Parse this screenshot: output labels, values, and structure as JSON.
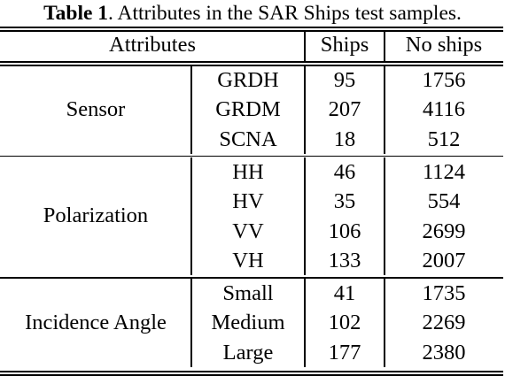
{
  "caption": {
    "label": "Table 1",
    "text": ". Attributes in the SAR Ships test samples."
  },
  "header": {
    "attributes": "Attributes",
    "ships": "Ships",
    "no_ships": "No ships"
  },
  "groups": [
    {
      "name": "Sensor",
      "rows": [
        {
          "attribute": "GRDH",
          "ships": "95",
          "no_ships": "1756"
        },
        {
          "attribute": "GRDM",
          "ships": "207",
          "no_ships": "4116"
        },
        {
          "attribute": "SCNA",
          "ships": "18",
          "no_ships": "512"
        }
      ]
    },
    {
      "name": "Polarization",
      "rows": [
        {
          "attribute": "HH",
          "ships": "46",
          "no_ships": "1124"
        },
        {
          "attribute": "HV",
          "ships": "35",
          "no_ships": "554"
        },
        {
          "attribute": "VV",
          "ships": "106",
          "no_ships": "2699"
        },
        {
          "attribute": "VH",
          "ships": "133",
          "no_ships": "2007"
        }
      ]
    },
    {
      "name": "Incidence Angle",
      "rows": [
        {
          "attribute": "Small",
          "ships": "41",
          "no_ships": "1735"
        },
        {
          "attribute": "Medium",
          "ships": "102",
          "no_ships": "2269"
        },
        {
          "attribute": "Large",
          "ships": "177",
          "no_ships": "2380"
        }
      ]
    }
  ]
}
